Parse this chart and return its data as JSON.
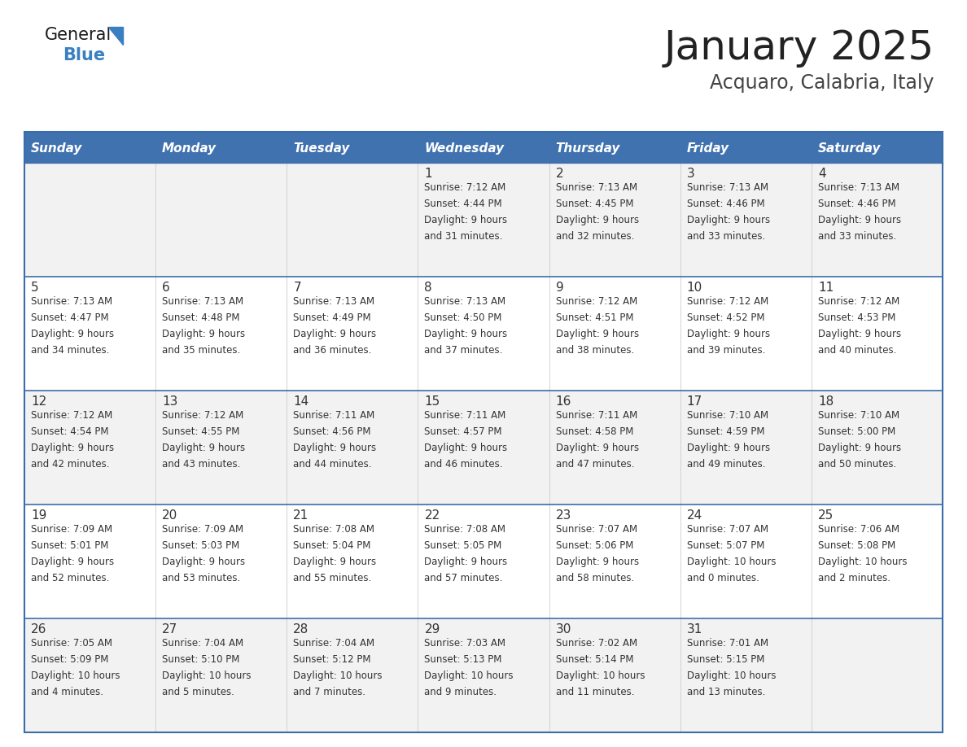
{
  "title": "January 2025",
  "subtitle": "Acquaro, Calabria, Italy",
  "header_bg": "#4072AF",
  "header_text_color": "#FFFFFF",
  "day_names": [
    "Sunday",
    "Monday",
    "Tuesday",
    "Wednesday",
    "Thursday",
    "Friday",
    "Saturday"
  ],
  "cell_bg_even": "#F2F2F2",
  "cell_bg_odd": "#FFFFFF",
  "cell_text_color": "#333333",
  "border_color": "#3C6DAB",
  "title_color": "#222222",
  "subtitle_color": "#444444",
  "logo_text_color": "#1a1a1a",
  "logo_blue_color": "#3A7FC1",
  "logo_triangle_color": "#3A7FC1",
  "days": [
    {
      "day": 1,
      "col": 3,
      "row": 0,
      "sunrise": "7:12 AM",
      "sunset": "4:44 PM",
      "daylight": "9 hours and 31 minutes"
    },
    {
      "day": 2,
      "col": 4,
      "row": 0,
      "sunrise": "7:13 AM",
      "sunset": "4:45 PM",
      "daylight": "9 hours and 32 minutes"
    },
    {
      "day": 3,
      "col": 5,
      "row": 0,
      "sunrise": "7:13 AM",
      "sunset": "4:46 PM",
      "daylight": "9 hours and 33 minutes"
    },
    {
      "day": 4,
      "col": 6,
      "row": 0,
      "sunrise": "7:13 AM",
      "sunset": "4:46 PM",
      "daylight": "9 hours and 33 minutes"
    },
    {
      "day": 5,
      "col": 0,
      "row": 1,
      "sunrise": "7:13 AM",
      "sunset": "4:47 PM",
      "daylight": "9 hours and 34 minutes"
    },
    {
      "day": 6,
      "col": 1,
      "row": 1,
      "sunrise": "7:13 AM",
      "sunset": "4:48 PM",
      "daylight": "9 hours and 35 minutes"
    },
    {
      "day": 7,
      "col": 2,
      "row": 1,
      "sunrise": "7:13 AM",
      "sunset": "4:49 PM",
      "daylight": "9 hours and 36 minutes"
    },
    {
      "day": 8,
      "col": 3,
      "row": 1,
      "sunrise": "7:13 AM",
      "sunset": "4:50 PM",
      "daylight": "9 hours and 37 minutes"
    },
    {
      "day": 9,
      "col": 4,
      "row": 1,
      "sunrise": "7:12 AM",
      "sunset": "4:51 PM",
      "daylight": "9 hours and 38 minutes"
    },
    {
      "day": 10,
      "col": 5,
      "row": 1,
      "sunrise": "7:12 AM",
      "sunset": "4:52 PM",
      "daylight": "9 hours and 39 minutes"
    },
    {
      "day": 11,
      "col": 6,
      "row": 1,
      "sunrise": "7:12 AM",
      "sunset": "4:53 PM",
      "daylight": "9 hours and 40 minutes"
    },
    {
      "day": 12,
      "col": 0,
      "row": 2,
      "sunrise": "7:12 AM",
      "sunset": "4:54 PM",
      "daylight": "9 hours and 42 minutes"
    },
    {
      "day": 13,
      "col": 1,
      "row": 2,
      "sunrise": "7:12 AM",
      "sunset": "4:55 PM",
      "daylight": "9 hours and 43 minutes"
    },
    {
      "day": 14,
      "col": 2,
      "row": 2,
      "sunrise": "7:11 AM",
      "sunset": "4:56 PM",
      "daylight": "9 hours and 44 minutes"
    },
    {
      "day": 15,
      "col": 3,
      "row": 2,
      "sunrise": "7:11 AM",
      "sunset": "4:57 PM",
      "daylight": "9 hours and 46 minutes"
    },
    {
      "day": 16,
      "col": 4,
      "row": 2,
      "sunrise": "7:11 AM",
      "sunset": "4:58 PM",
      "daylight": "9 hours and 47 minutes"
    },
    {
      "day": 17,
      "col": 5,
      "row": 2,
      "sunrise": "7:10 AM",
      "sunset": "4:59 PM",
      "daylight": "9 hours and 49 minutes"
    },
    {
      "day": 18,
      "col": 6,
      "row": 2,
      "sunrise": "7:10 AM",
      "sunset": "5:00 PM",
      "daylight": "9 hours and 50 minutes"
    },
    {
      "day": 19,
      "col": 0,
      "row": 3,
      "sunrise": "7:09 AM",
      "sunset": "5:01 PM",
      "daylight": "9 hours and 52 minutes"
    },
    {
      "day": 20,
      "col": 1,
      "row": 3,
      "sunrise": "7:09 AM",
      "sunset": "5:03 PM",
      "daylight": "9 hours and 53 minutes"
    },
    {
      "day": 21,
      "col": 2,
      "row": 3,
      "sunrise": "7:08 AM",
      "sunset": "5:04 PM",
      "daylight": "9 hours and 55 minutes"
    },
    {
      "day": 22,
      "col": 3,
      "row": 3,
      "sunrise": "7:08 AM",
      "sunset": "5:05 PM",
      "daylight": "9 hours and 57 minutes"
    },
    {
      "day": 23,
      "col": 4,
      "row": 3,
      "sunrise": "7:07 AM",
      "sunset": "5:06 PM",
      "daylight": "9 hours and 58 minutes"
    },
    {
      "day": 24,
      "col": 5,
      "row": 3,
      "sunrise": "7:07 AM",
      "sunset": "5:07 PM",
      "daylight": "10 hours and 0 minutes"
    },
    {
      "day": 25,
      "col": 6,
      "row": 3,
      "sunrise": "7:06 AM",
      "sunset": "5:08 PM",
      "daylight": "10 hours and 2 minutes"
    },
    {
      "day": 26,
      "col": 0,
      "row": 4,
      "sunrise": "7:05 AM",
      "sunset": "5:09 PM",
      "daylight": "10 hours and 4 minutes"
    },
    {
      "day": 27,
      "col": 1,
      "row": 4,
      "sunrise": "7:04 AM",
      "sunset": "5:10 PM",
      "daylight": "10 hours and 5 minutes"
    },
    {
      "day": 28,
      "col": 2,
      "row": 4,
      "sunrise": "7:04 AM",
      "sunset": "5:12 PM",
      "daylight": "10 hours and 7 minutes"
    },
    {
      "day": 29,
      "col": 3,
      "row": 4,
      "sunrise": "7:03 AM",
      "sunset": "5:13 PM",
      "daylight": "10 hours and 9 minutes"
    },
    {
      "day": 30,
      "col": 4,
      "row": 4,
      "sunrise": "7:02 AM",
      "sunset": "5:14 PM",
      "daylight": "10 hours and 11 minutes"
    },
    {
      "day": 31,
      "col": 5,
      "row": 4,
      "sunrise": "7:01 AM",
      "sunset": "5:15 PM",
      "daylight": "10 hours and 13 minutes"
    }
  ]
}
